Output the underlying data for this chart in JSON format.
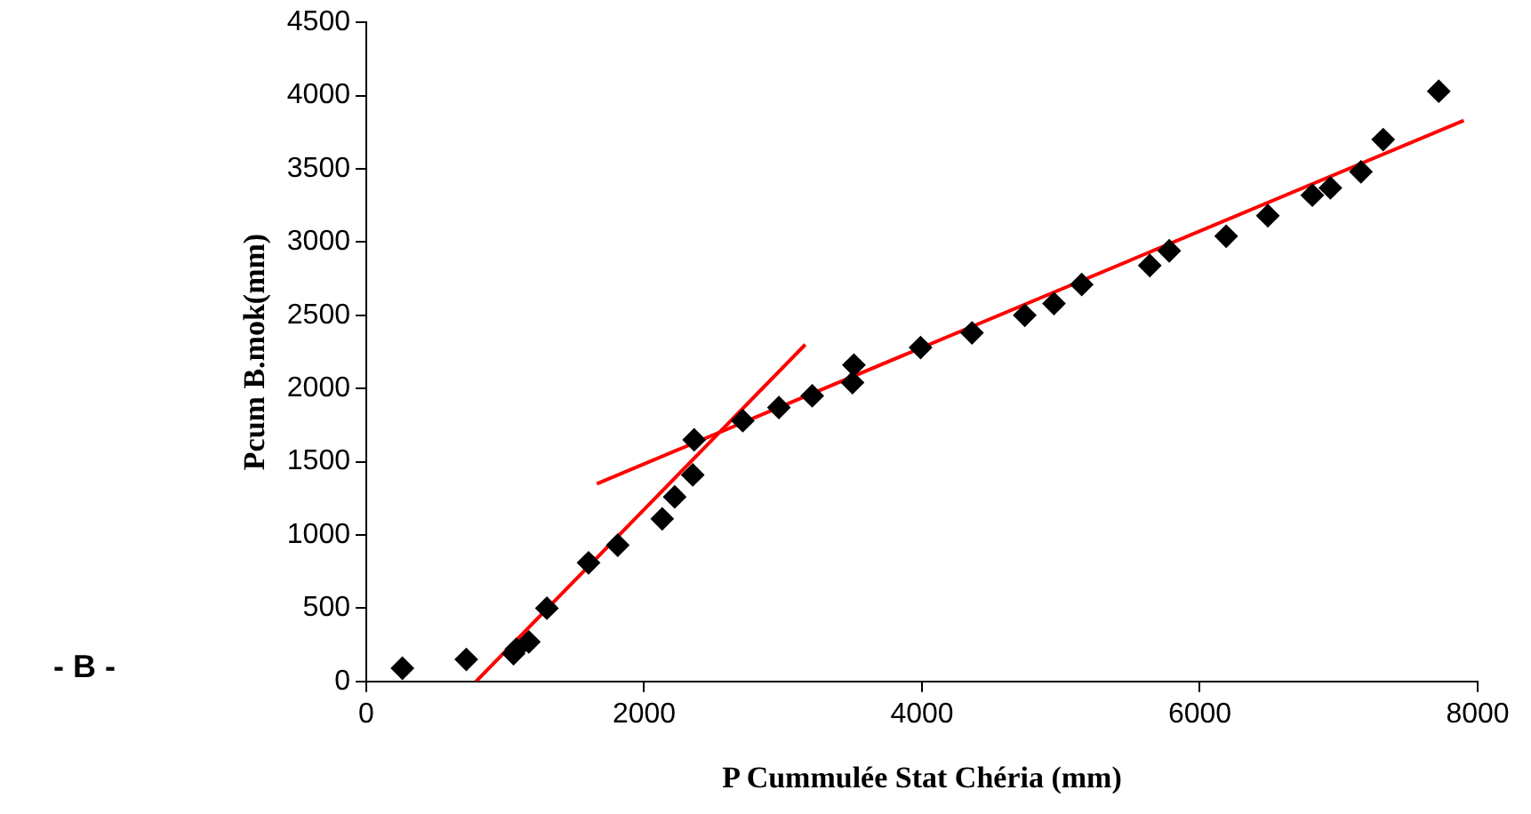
{
  "chart_data": {
    "type": "scatter",
    "xlabel": "P Cummulée Stat Chéria (mm)",
    "ylabel": "Pcum B.mok(mm)",
    "annotations": [
      "- B -"
    ],
    "xlim": [
      0,
      8000
    ],
    "xticks": [
      0,
      2000,
      4000,
      6000,
      8000
    ],
    "ylim": [
      0,
      4500
    ],
    "yticks": [
      0,
      500,
      1000,
      1500,
      2000,
      2500,
      3000,
      3500,
      4000,
      4500
    ],
    "grid": false,
    "legend": false,
    "marker": "diamond",
    "series": [
      {
        "type": "scatter",
        "color": "#000000",
        "x": [
          260,
          720,
          1060,
          1080,
          1170,
          1300,
          1600,
          1810,
          2130,
          2220,
          2350,
          2360,
          2710,
          2970,
          3210,
          3500,
          3510,
          3990,
          4360,
          4740,
          4950,
          5150,
          5640,
          5780,
          6190,
          6490,
          6810,
          6940,
          7160,
          7320,
          7720
        ],
        "values": [
          90,
          150,
          190,
          220,
          270,
          500,
          810,
          930,
          1110,
          1260,
          1410,
          1650,
          1780,
          1870,
          1950,
          2040,
          2160,
          2280,
          2380,
          2500,
          2580,
          2710,
          2840,
          2940,
          3040,
          3180,
          3320,
          3370,
          3480,
          3700,
          4030
        ]
      },
      {
        "type": "line",
        "color": "#ff0000",
        "marker": "none",
        "x": [
          790,
          3160
        ],
        "values": [
          0,
          2300
        ]
      },
      {
        "type": "line",
        "color": "#ff0000",
        "marker": "none",
        "x": [
          1660,
          7900
        ],
        "values": [
          1350,
          3830
        ]
      }
    ]
  }
}
